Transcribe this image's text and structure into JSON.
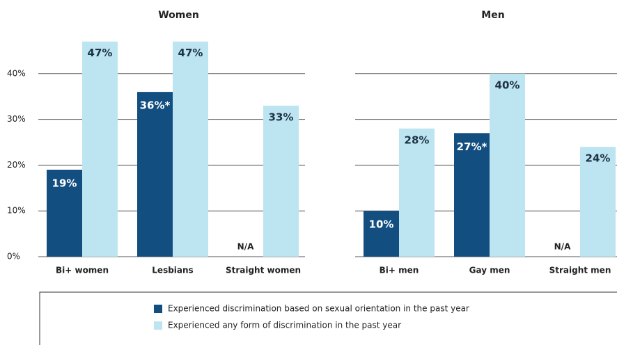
{
  "chart_data": [
    {
      "type": "bar",
      "title": "Women",
      "categories": [
        "Bi+ women",
        "Lesbians",
        "Straight women"
      ],
      "series": [
        {
          "name": "Experienced discrimination based on sexual orientation in the past year",
          "color": "#124e80",
          "values": [
            19,
            36,
            null
          ],
          "value_labels": [
            "19%",
            "36%*",
            "N/A"
          ]
        },
        {
          "name": "Experienced any form of discrimination in the past year",
          "color": "#bde5f1",
          "values": [
            47,
            47,
            33
          ],
          "value_labels": [
            "47%",
            "47%",
            "33%"
          ]
        }
      ],
      "ylim": [
        0,
        50
      ],
      "yticks": [
        {
          "value": 0,
          "label": "0%"
        },
        {
          "value": 10,
          "label": "10%"
        },
        {
          "value": 20,
          "label": "20%"
        },
        {
          "value": 30,
          "label": "30%"
        },
        {
          "value": 40,
          "label": "40%"
        }
      ],
      "grid": true
    },
    {
      "type": "bar",
      "title": "Men",
      "categories": [
        "Bi+ men",
        "Gay men",
        "Straight men"
      ],
      "series": [
        {
          "color": "#124e80",
          "values": [
            10,
            27,
            null
          ],
          "value_labels": [
            "10%",
            "27%*",
            "N/A"
          ]
        },
        {
          "color": "#bde5f1",
          "values": [
            28,
            40,
            24
          ],
          "value_labels": [
            "28%",
            "40%",
            "24%"
          ]
        }
      ],
      "ylim": [
        0,
        50
      ],
      "yticks": [
        0,
        10,
        20,
        30,
        40
      ],
      "grid": true
    }
  ]
}
